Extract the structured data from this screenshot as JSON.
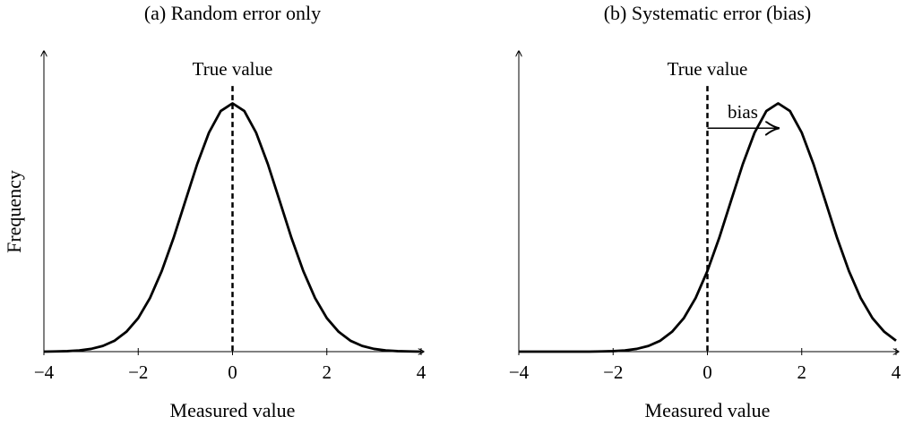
{
  "chart_data": [
    {
      "type": "line",
      "title": "(a) Random error only",
      "xlabel": "Measured value",
      "ylabel": "Frequency",
      "x": [
        -4,
        -3.75,
        -3.5,
        -3.25,
        -3,
        -2.75,
        -2.5,
        -2.25,
        -2,
        -1.75,
        -1.5,
        -1.25,
        -1,
        -0.75,
        -0.5,
        -0.25,
        0,
        0.25,
        0.5,
        0.75,
        1,
        1.25,
        1.5,
        1.75,
        2,
        2.25,
        2.5,
        2.75,
        3,
        3.25,
        3.5,
        3.75,
        4
      ],
      "values": [
        0,
        0.001,
        0.002,
        0.005,
        0.011,
        0.023,
        0.044,
        0.08,
        0.135,
        0.216,
        0.325,
        0.458,
        0.607,
        0.755,
        0.882,
        0.969,
        1,
        0.969,
        0.882,
        0.755,
        0.607,
        0.458,
        0.325,
        0.216,
        0.135,
        0.08,
        0.044,
        0.023,
        0.011,
        0.005,
        0.002,
        0.001,
        0
      ],
      "color": "#000000",
      "xlim": [
        -4,
        4
      ],
      "ylim": [
        0,
        1.2
      ],
      "xticks": [
        {
          "value": -4,
          "label": "−4"
        },
        {
          "value": -2,
          "label": "−2"
        },
        0,
        2,
        4
      ],
      "vline": {
        "x": 0,
        "label": "True value"
      }
    },
    {
      "type": "line",
      "title": "(b) Systematic error (bias)",
      "xlabel": "Measured value",
      "x": [
        -4,
        -3.75,
        -3.5,
        -3.25,
        -3,
        -2.75,
        -2.5,
        -2.25,
        -2,
        -1.75,
        -1.5,
        -1.25,
        -1,
        -0.75,
        -0.5,
        -0.25,
        0,
        0.25,
        0.5,
        0.75,
        1,
        1.25,
        1.5,
        1.75,
        2,
        2.25,
        2.5,
        2.75,
        3,
        3.25,
        3.5,
        3.75,
        4
      ],
      "values": [
        0,
        0,
        0,
        0,
        0,
        0,
        0,
        0.001,
        0.002,
        0.005,
        0.011,
        0.023,
        0.044,
        0.08,
        0.135,
        0.216,
        0.325,
        0.458,
        0.607,
        0.755,
        0.882,
        0.969,
        1,
        0.969,
        0.882,
        0.755,
        0.607,
        0.458,
        0.325,
        0.216,
        0.135,
        0.08,
        0.044
      ],
      "color": "#000000",
      "xlim": [
        -4,
        4
      ],
      "ylim": [
        0,
        1.2
      ],
      "xticks": [
        {
          "value": -4,
          "label": "−4"
        },
        {
          "value": -2,
          "label": "−2"
        },
        0,
        2,
        4
      ],
      "vline": {
        "x": 0,
        "label": "True value"
      },
      "arrow": {
        "from": 0,
        "to": 1.5,
        "label": "bias"
      }
    }
  ]
}
